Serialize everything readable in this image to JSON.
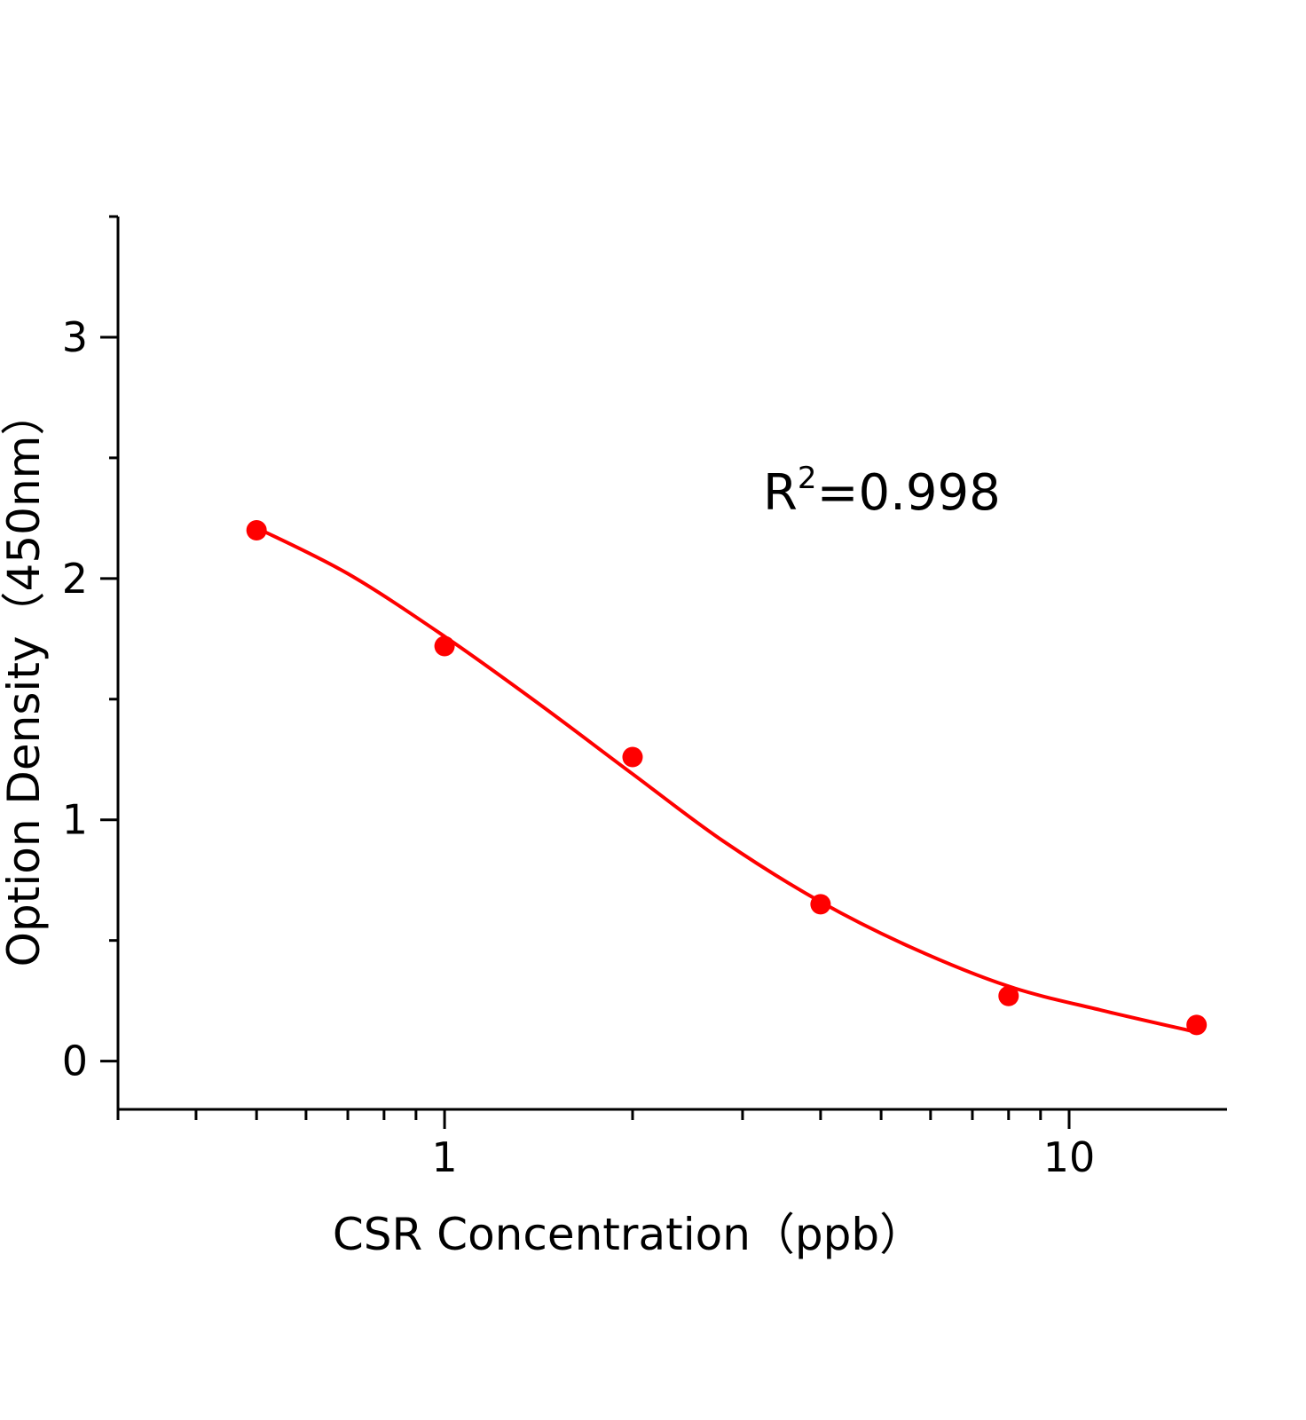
{
  "chart_data": {
    "type": "scatter",
    "title": "",
    "xlabel": "CSR Concentration（ppb）",
    "ylabel": "Option Density（450nm）",
    "x_scale": "log",
    "xlim": [
      0.3,
      17.9
    ],
    "ylim": [
      -0.2,
      3.5
    ],
    "x_ticks": [
      "1",
      "10"
    ],
    "x_tick_values": [
      1,
      10
    ],
    "y_ticks": [
      "0",
      "1",
      "2",
      "3"
    ],
    "y_tick_values": [
      0,
      1,
      2,
      3
    ],
    "grid": false,
    "legend": "none",
    "color": "#ff0000",
    "series": [
      {
        "kind": "points",
        "x": [
          0.5,
          1,
          2,
          4,
          8,
          16
        ],
        "y": [
          2.2,
          1.72,
          1.26,
          0.65,
          0.27,
          0.15
        ]
      },
      {
        "kind": "fit-curve",
        "x": [
          0.5,
          0.7,
          1,
          1.4,
          2,
          2.8,
          4,
          5.6,
          8,
          11.3,
          16
        ],
        "y": [
          2.21,
          2.02,
          1.76,
          1.49,
          1.19,
          0.91,
          0.66,
          0.47,
          0.31,
          0.21,
          0.12
        ]
      }
    ],
    "annotation": {
      "prefix": "R",
      "sup": "2",
      "suffix": "=0.998"
    }
  }
}
